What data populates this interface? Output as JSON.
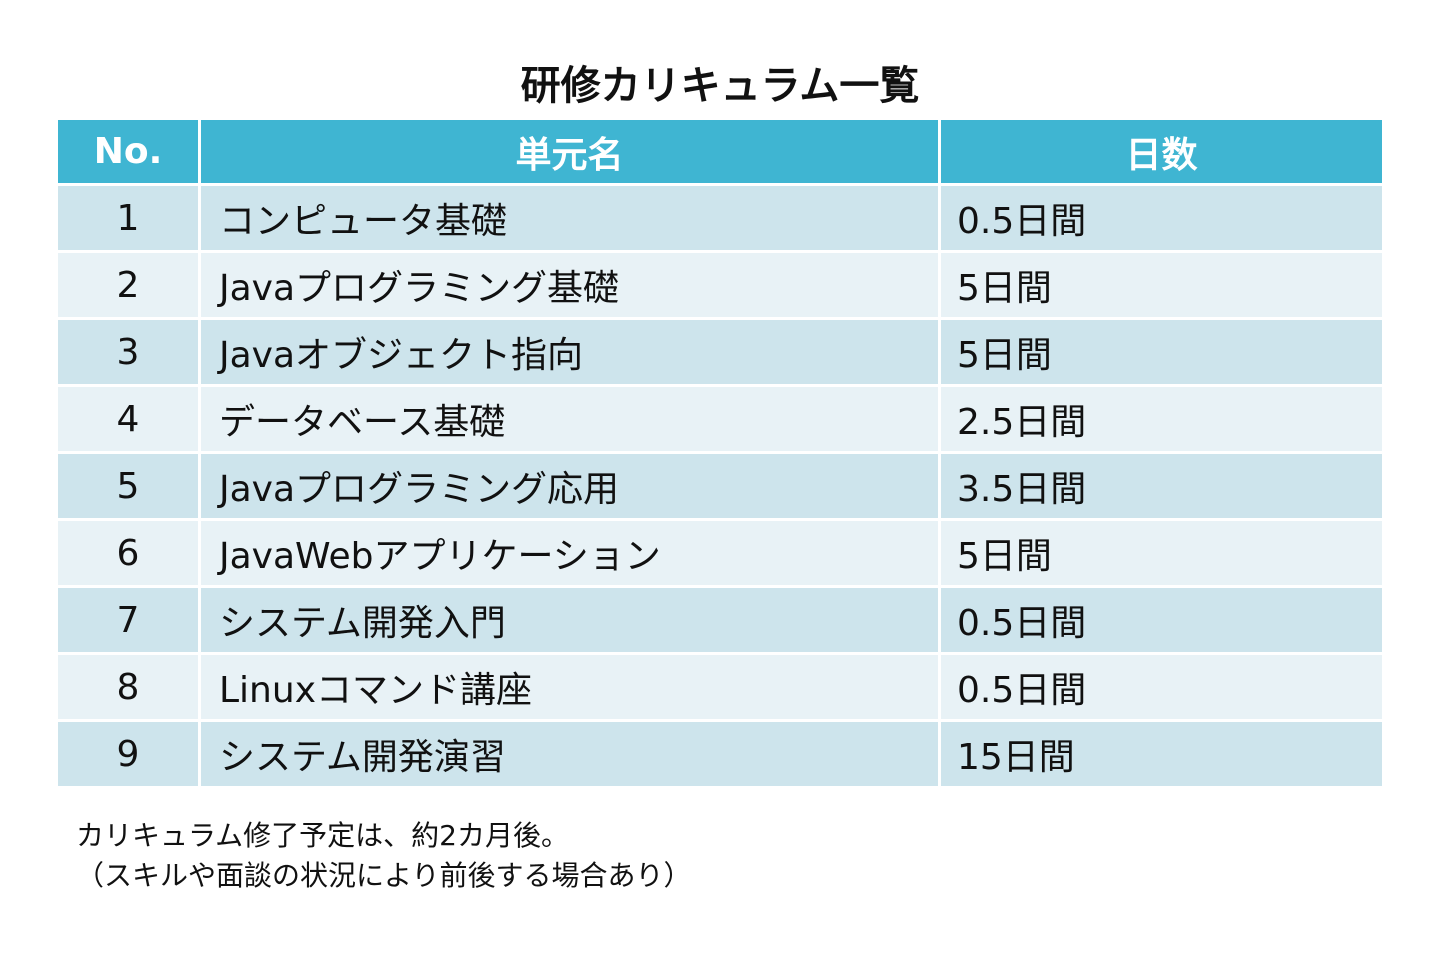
{
  "title": "研修カリキュラム一覧",
  "table": {
    "headers": {
      "no": "No.",
      "name": "単元名",
      "days": "日数"
    },
    "rows": [
      {
        "no": "1",
        "name": "コンピュータ基礎",
        "days": "0.5日間"
      },
      {
        "no": "2",
        "name": "Javaプログラミング基礎",
        "days": "5日間"
      },
      {
        "no": "3",
        "name": "Javaオブジェクト指向",
        "days": "5日間"
      },
      {
        "no": "4",
        "name": "データベース基礎",
        "days": "2.5日間"
      },
      {
        "no": "5",
        "name": "Javaプログラミング応用",
        "days": "3.5日間"
      },
      {
        "no": "6",
        "name": "JavaWebアプリケーション",
        "days": "5日間"
      },
      {
        "no": "7",
        "name": "システム開発入門",
        "days": "0.5日間"
      },
      {
        "no": "8",
        "name": "Linuxコマンド講座",
        "days": "0.5日間"
      },
      {
        "no": "9",
        "name": "システム開発演習",
        "days": "15日間"
      }
    ]
  },
  "note": {
    "line1": "カリキュラム修了予定は、約2カ月後。",
    "line2": "（スキルや面談の状況により前後する場合あり）"
  },
  "colors": {
    "header_bg": "#3fb5d2",
    "row_odd_bg": "#cde4ec",
    "row_even_bg": "#e8f2f6"
  }
}
